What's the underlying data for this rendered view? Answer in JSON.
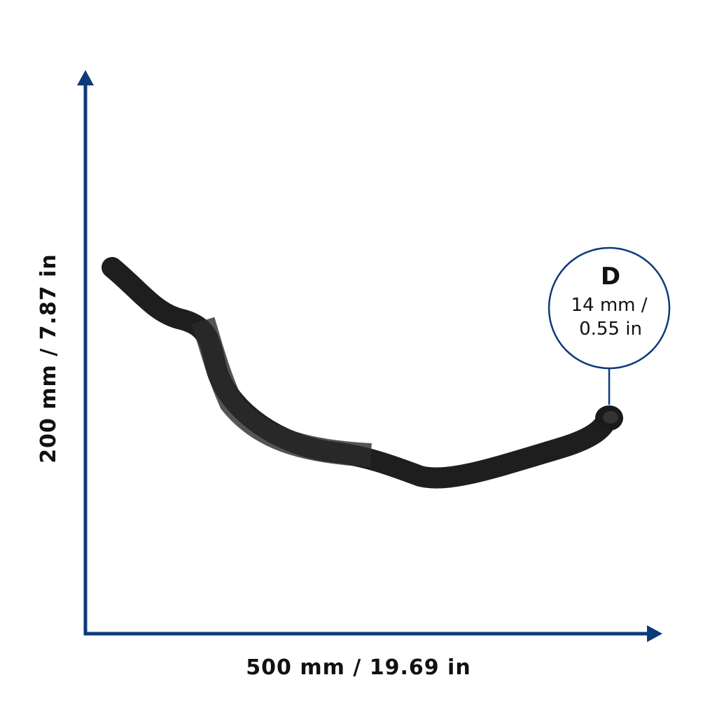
{
  "dimensions": {
    "height": "200 mm / 7.87 in",
    "width": "500 mm / 19.69 in"
  },
  "callout": {
    "label": "D",
    "lines": [
      "14 mm /",
      "0.55 in"
    ]
  }
}
